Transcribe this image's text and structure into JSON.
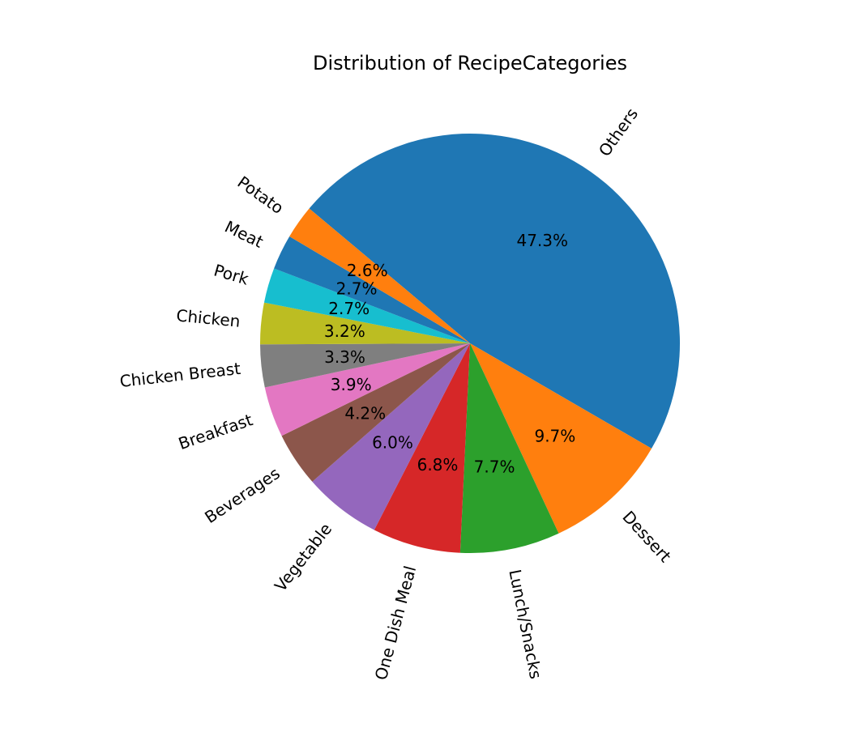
{
  "chart_data": {
    "type": "pie",
    "title": "Distribution of RecipeCategories",
    "start_angle_deg": 140,
    "direction": "clockwise",
    "slices": [
      {
        "label": "Others",
        "value": 47.3,
        "pct_label": "47.3%",
        "color": "#1f77b4"
      },
      {
        "label": "Dessert",
        "value": 9.7,
        "pct_label": "9.7%",
        "color": "#ff7f0e"
      },
      {
        "label": "Lunch/Snacks",
        "value": 7.7,
        "pct_label": "7.7%",
        "color": "#2ca02c"
      },
      {
        "label": "One Dish Meal",
        "value": 6.8,
        "pct_label": "6.8%",
        "color": "#d62728"
      },
      {
        "label": "Vegetable",
        "value": 6.0,
        "pct_label": "6.0%",
        "color": "#9467bd"
      },
      {
        "label": "Beverages",
        "value": 4.2,
        "pct_label": "4.2%",
        "color": "#8c564b"
      },
      {
        "label": "Breakfast",
        "value": 3.9,
        "pct_label": "3.9%",
        "color": "#e377c2"
      },
      {
        "label": "Chicken Breast",
        "value": 3.3,
        "pct_label": "3.3%",
        "color": "#7f7f7f"
      },
      {
        "label": "Chicken",
        "value": 3.2,
        "pct_label": "3.2%",
        "color": "#bcbd22"
      },
      {
        "label": "Pork",
        "value": 2.7,
        "pct_label": "2.7%",
        "color": "#17becf"
      },
      {
        "label": "Meat",
        "value": 2.7,
        "pct_label": "2.7%",
        "color": "#1f77b4"
      },
      {
        "label": "Potato",
        "value": 2.6,
        "pct_label": "2.6%",
        "color": "#ff7f0e"
      }
    ]
  }
}
